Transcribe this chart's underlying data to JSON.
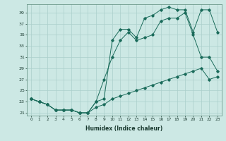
{
  "xlabel": "Humidex (Indice chaleur)",
  "background_color": "#cce8e4",
  "grid_color": "#aacfcb",
  "line_color": "#1a6b5a",
  "xlim": [
    -0.5,
    23.5
  ],
  "ylim": [
    20.5,
    40.5
  ],
  "yticks": [
    21,
    23,
    25,
    27,
    29,
    31,
    33,
    35,
    37,
    39
  ],
  "xticks": [
    0,
    1,
    2,
    3,
    4,
    5,
    6,
    7,
    8,
    9,
    10,
    11,
    12,
    13,
    14,
    15,
    16,
    17,
    18,
    19,
    20,
    21,
    22,
    23
  ],
  "series": [
    {
      "x": [
        0,
        1,
        2,
        3,
        4,
        5,
        6,
        7,
        8,
        9,
        10,
        11,
        12,
        13,
        14,
        15,
        16,
        17,
        18,
        19,
        20,
        21,
        22,
        23
      ],
      "y": [
        23.5,
        23.0,
        22.5,
        21.5,
        21.5,
        21.5,
        21.0,
        21.0,
        22.0,
        22.5,
        23.5,
        24.0,
        24.5,
        25.0,
        25.5,
        26.0,
        26.5,
        27.0,
        27.5,
        28.0,
        28.5,
        29.0,
        27.0,
        27.5
      ]
    },
    {
      "x": [
        0,
        1,
        2,
        3,
        4,
        5,
        6,
        7,
        8,
        9,
        10,
        11,
        12,
        13,
        14,
        15,
        16,
        17,
        18,
        19,
        20,
        21,
        22,
        23
      ],
      "y": [
        23.5,
        23.0,
        22.5,
        21.5,
        21.5,
        21.5,
        21.0,
        21.0,
        23.0,
        27.0,
        31.0,
        34.0,
        35.5,
        34.0,
        34.5,
        35.0,
        37.5,
        38.0,
        38.0,
        39.0,
        35.0,
        31.0,
        31.0,
        28.5
      ]
    },
    {
      "x": [
        0,
        1,
        2,
        3,
        4,
        5,
        6,
        7,
        8,
        9,
        10,
        11,
        12,
        13,
        14,
        15,
        16,
        17,
        18,
        19,
        20,
        21,
        22,
        23
      ],
      "y": [
        23.5,
        23.0,
        22.5,
        21.5,
        21.5,
        21.5,
        21.0,
        21.0,
        23.0,
        23.5,
        34.0,
        36.0,
        36.0,
        34.5,
        38.0,
        38.5,
        39.5,
        40.0,
        39.5,
        39.5,
        35.5,
        39.5,
        39.5,
        35.5
      ]
    }
  ]
}
